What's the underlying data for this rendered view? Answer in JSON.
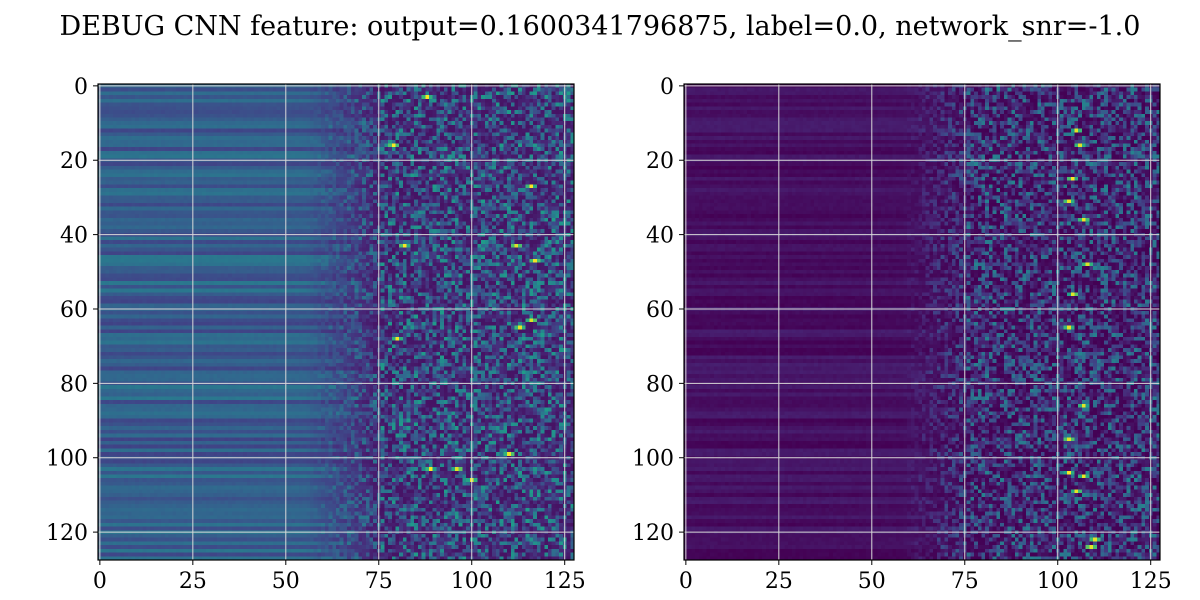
{
  "title": "DEBUG CNN feature: output=0.1600341796875, label=0.0, network_snr=-1.0",
  "colormap": [
    "#440154",
    "#482878",
    "#3e4989",
    "#31688e",
    "#26828e",
    "#1f9e89",
    "#35b779",
    "#6ece58",
    "#b5de2b",
    "#fde725"
  ],
  "chart_data": [
    {
      "type": "heatmap",
      "name": "left",
      "rows": 128,
      "cols": 128,
      "xlim": [
        0,
        127
      ],
      "ylim": [
        127,
        0
      ],
      "xticks": [
        0,
        25,
        50,
        75,
        100,
        125
      ],
      "yticks": [
        0,
        20,
        40,
        60,
        80,
        100,
        120
      ],
      "grid": true,
      "value_range": [
        0,
        1
      ],
      "pattern": {
        "smooth_band_end_col": 55,
        "transition_end_col": 76,
        "smooth_level": [
          0.2,
          0.4
        ],
        "noisy_level": [
          0.05,
          0.55
        ],
        "hot_spots": [
          [
            3,
            88
          ],
          [
            16,
            79
          ],
          [
            27,
            116
          ],
          [
            43,
            82
          ],
          [
            43,
            112
          ],
          [
            47,
            117
          ],
          [
            63,
            116
          ],
          [
            65,
            113
          ],
          [
            68,
            80
          ],
          [
            99,
            110
          ],
          [
            103,
            89
          ],
          [
            103,
            96
          ],
          [
            106,
            100
          ]
        ]
      }
    },
    {
      "type": "heatmap",
      "name": "right",
      "rows": 128,
      "cols": 128,
      "xlim": [
        0,
        127
      ],
      "ylim": [
        127,
        0
      ],
      "xticks": [
        0,
        25,
        50,
        75,
        100,
        125
      ],
      "yticks": [
        0,
        20,
        40,
        60,
        80,
        100,
        120
      ],
      "grid": true,
      "value_range": [
        0,
        1
      ],
      "pattern": {
        "smooth_band_end_col": 58,
        "transition_end_col": 76,
        "smooth_level": [
          0.0,
          0.08
        ],
        "noisy_level": [
          0.0,
          0.45
        ],
        "hot_spots": [
          [
            12,
            105
          ],
          [
            16,
            106
          ],
          [
            25,
            104
          ],
          [
            31,
            103
          ],
          [
            36,
            107
          ],
          [
            48,
            108
          ],
          [
            56,
            104
          ],
          [
            65,
            103
          ],
          [
            86,
            107
          ],
          [
            95,
            103
          ],
          [
            104,
            103
          ],
          [
            105,
            107
          ],
          [
            109,
            105
          ],
          [
            122,
            110
          ],
          [
            124,
            109
          ]
        ]
      }
    }
  ]
}
